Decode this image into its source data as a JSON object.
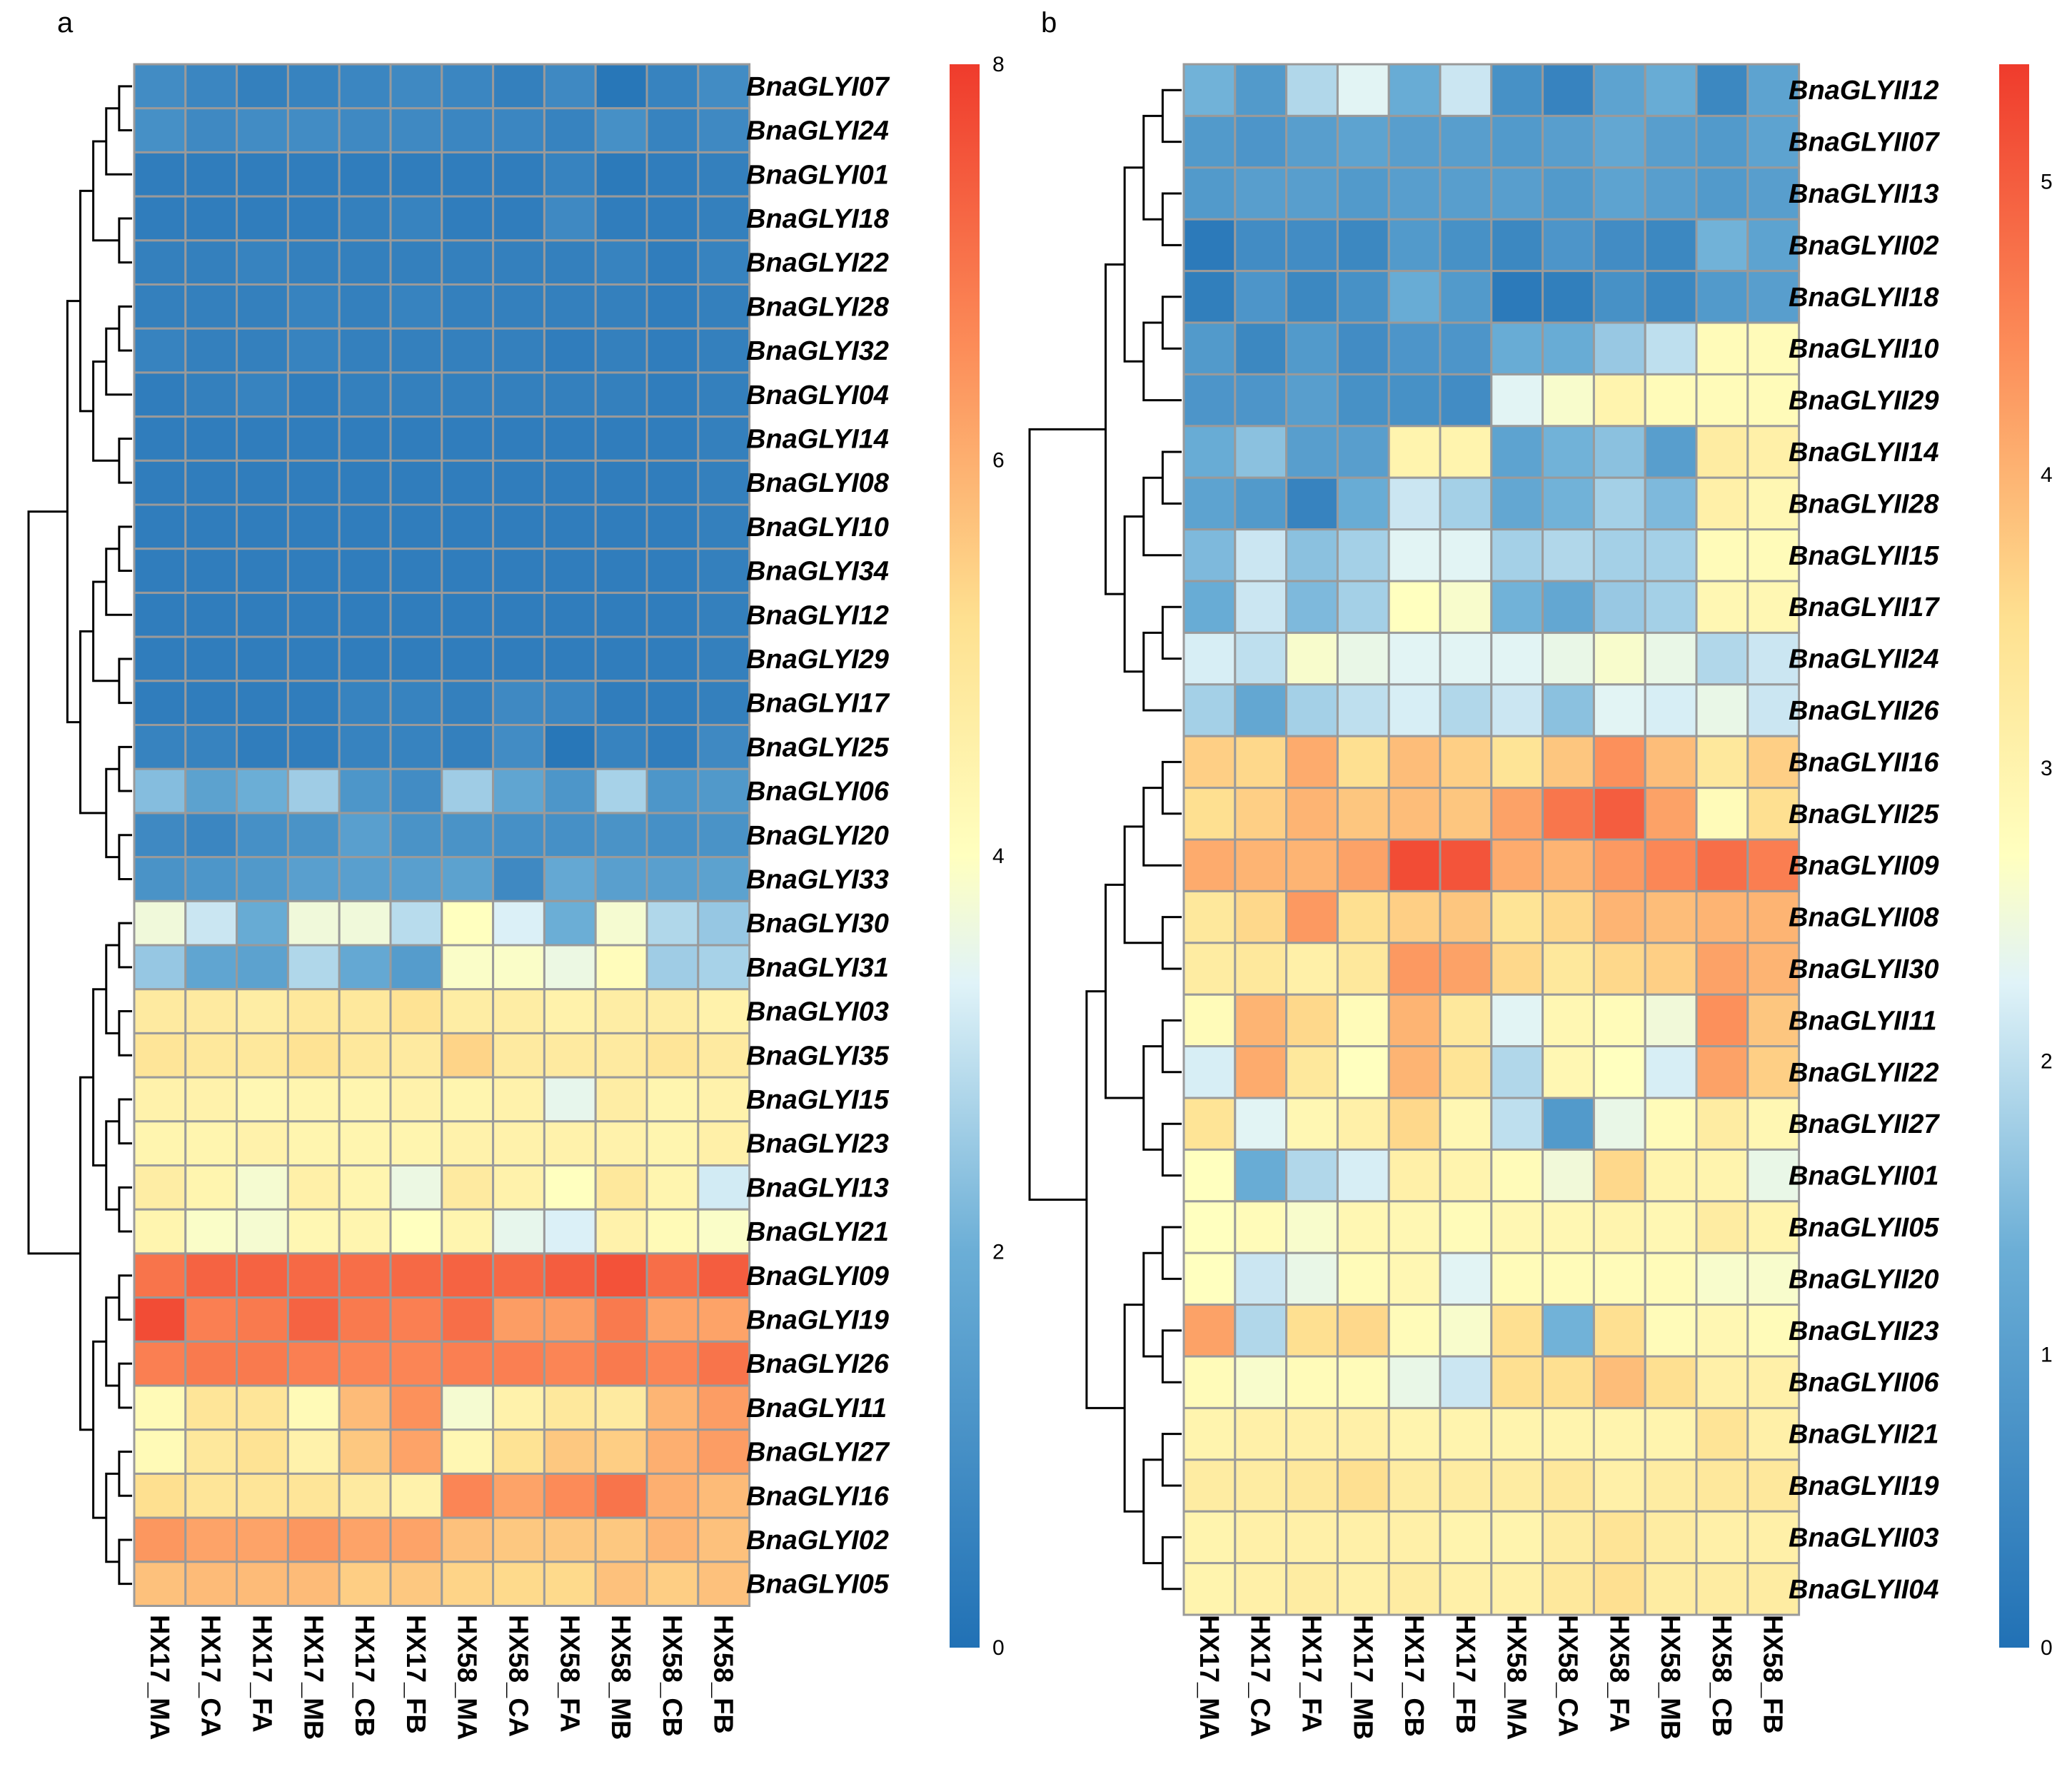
{
  "figure": {
    "panel_a_label": "a",
    "panel_b_label": "b"
  },
  "colors": {
    "low": "#2171b5",
    "mid": "#ffffbf",
    "high": "#ef3b2c",
    "grid": "#9a9a9a"
  },
  "chart_data": [
    {
      "type": "heatmap",
      "panel": "a",
      "columns": [
        "HX17_MA",
        "HX17_CA",
        "HX17_FA",
        "HX17_MB",
        "HX17_CB",
        "HX17_FB",
        "HX58_MA",
        "HX58_CA",
        "HX58_FA",
        "HX58_MB",
        "HX58_CB",
        "HX58_FB"
      ],
      "rows": [
        "BnaGLYI07",
        "BnaGLYI24",
        "BnaGLYI01",
        "BnaGLYI18",
        "BnaGLYI22",
        "BnaGLYI28",
        "BnaGLYI32",
        "BnaGLYI04",
        "BnaGLYI14",
        "BnaGLYI08",
        "BnaGLYI10",
        "BnaGLYI34",
        "BnaGLYI12",
        "BnaGLYI29",
        "BnaGLYI17",
        "BnaGLYI25",
        "BnaGLYI06",
        "BnaGLYI20",
        "BnaGLYI33",
        "BnaGLYI30",
        "BnaGLYI31",
        "BnaGLYI03",
        "BnaGLYI35",
        "BnaGLYI15",
        "BnaGLYI23",
        "BnaGLYI13",
        "BnaGLYI21",
        "BnaGLYI09",
        "BnaGLYI19",
        "BnaGLYI26",
        "BnaGLYI11",
        "BnaGLYI27",
        "BnaGLYI16",
        "BnaGLYI02",
        "BnaGLYI05"
      ],
      "values": [
        [
          0.9,
          0.7,
          0.5,
          0.6,
          0.7,
          0.8,
          0.7,
          0.5,
          0.8,
          0.2,
          0.6,
          0.9
        ],
        [
          1.0,
          0.8,
          0.9,
          0.9,
          0.8,
          0.8,
          0.7,
          0.7,
          0.6,
          1.0,
          0.6,
          0.8
        ],
        [
          0.4,
          0.4,
          0.4,
          0.4,
          0.4,
          0.4,
          0.4,
          0.4,
          0.6,
          0.3,
          0.4,
          0.5
        ],
        [
          0.4,
          0.4,
          0.4,
          0.4,
          0.5,
          0.6,
          0.4,
          0.4,
          0.8,
          0.4,
          0.4,
          0.5
        ],
        [
          0.5,
          0.5,
          0.6,
          0.5,
          0.5,
          0.5,
          0.5,
          0.5,
          0.5,
          0.6,
          0.4,
          0.6
        ],
        [
          0.5,
          0.5,
          0.5,
          0.6,
          0.5,
          0.6,
          0.5,
          0.5,
          0.5,
          0.5,
          0.4,
          0.5
        ],
        [
          0.6,
          0.5,
          0.5,
          0.6,
          0.5,
          0.5,
          0.5,
          0.5,
          0.4,
          0.5,
          0.4,
          0.5
        ],
        [
          0.4,
          0.5,
          0.6,
          0.4,
          0.5,
          0.5,
          0.5,
          0.5,
          0.5,
          0.5,
          0.4,
          0.5
        ],
        [
          0.4,
          0.4,
          0.4,
          0.4,
          0.4,
          0.4,
          0.4,
          0.4,
          0.4,
          0.4,
          0.4,
          0.5
        ],
        [
          0.4,
          0.4,
          0.4,
          0.4,
          0.4,
          0.4,
          0.4,
          0.4,
          0.4,
          0.4,
          0.4,
          0.5
        ],
        [
          0.4,
          0.4,
          0.4,
          0.4,
          0.4,
          0.4,
          0.4,
          0.4,
          0.4,
          0.4,
          0.4,
          0.5
        ],
        [
          0.4,
          0.4,
          0.4,
          0.4,
          0.4,
          0.4,
          0.4,
          0.4,
          0.4,
          0.4,
          0.4,
          0.5
        ],
        [
          0.4,
          0.4,
          0.4,
          0.4,
          0.4,
          0.4,
          0.4,
          0.4,
          0.4,
          0.4,
          0.4,
          0.5
        ],
        [
          0.4,
          0.4,
          0.4,
          0.4,
          0.4,
          0.4,
          0.4,
          0.4,
          0.4,
          0.4,
          0.4,
          0.5
        ],
        [
          0.4,
          0.4,
          0.4,
          0.4,
          0.6,
          0.6,
          0.5,
          0.8,
          0.7,
          0.4,
          0.4,
          0.5
        ],
        [
          0.6,
          0.6,
          0.4,
          0.4,
          0.6,
          0.6,
          0.5,
          0.9,
          0.2,
          0.6,
          0.4,
          0.8
        ],
        [
          2.3,
          1.6,
          2.0,
          2.6,
          1.2,
          0.9,
          2.6,
          1.7,
          1.2,
          2.7,
          1.2,
          1.3
        ],
        [
          0.8,
          0.7,
          1.0,
          1.1,
          1.5,
          1.1,
          1.1,
          1.0,
          1.0,
          1.1,
          1.0,
          1.1
        ],
        [
          1.1,
          1.2,
          1.3,
          1.5,
          1.5,
          1.5,
          1.6,
          0.8,
          1.8,
          1.5,
          1.5,
          1.6
        ],
        [
          3.7,
          3.1,
          1.9,
          3.7,
          3.7,
          2.9,
          4.0,
          3.3,
          2.0,
          3.8,
          2.8,
          2.5
        ],
        [
          2.5,
          1.7,
          1.6,
          2.8,
          1.8,
          1.4,
          3.9,
          3.9,
          3.6,
          4.1,
          2.6,
          2.7
        ],
        [
          4.8,
          4.8,
          4.7,
          4.9,
          4.9,
          5.1,
          4.7,
          4.7,
          4.5,
          4.7,
          4.7,
          4.5
        ],
        [
          5.0,
          4.9,
          4.9,
          5.1,
          4.9,
          4.8,
          5.4,
          4.8,
          4.8,
          4.8,
          5.0,
          4.8
        ],
        [
          4.5,
          4.5,
          4.3,
          4.4,
          4.4,
          4.5,
          4.4,
          4.5,
          3.5,
          4.7,
          4.4,
          4.5
        ],
        [
          4.4,
          4.4,
          4.5,
          4.4,
          4.4,
          4.4,
          4.5,
          4.5,
          4.5,
          4.5,
          4.4,
          4.6
        ],
        [
          4.7,
          4.4,
          3.8,
          4.6,
          4.4,
          3.6,
          4.8,
          4.5,
          4.0,
          4.9,
          4.4,
          3.2
        ],
        [
          4.4,
          3.9,
          3.8,
          4.3,
          4.4,
          4.0,
          4.4,
          3.5,
          3.3,
          4.5,
          4.2,
          3.9
        ],
        [
          7.0,
          7.3,
          7.3,
          7.2,
          7.1,
          7.2,
          7.3,
          7.2,
          7.4,
          7.6,
          7.1,
          7.4
        ],
        [
          7.7,
          6.8,
          6.9,
          7.3,
          6.9,
          6.8,
          7.1,
          6.3,
          6.3,
          6.9,
          6.2,
          6.2
        ],
        [
          6.8,
          6.9,
          6.9,
          6.8,
          6.7,
          6.7,
          6.8,
          6.8,
          6.7,
          6.9,
          6.7,
          7.0
        ],
        [
          4.2,
          5.0,
          5.0,
          4.2,
          5.8,
          6.5,
          3.8,
          4.5,
          4.9,
          4.8,
          5.9,
          6.3
        ],
        [
          4.2,
          4.9,
          5.1,
          4.5,
          5.6,
          6.2,
          4.3,
          5.1,
          5.6,
          5.5,
          6.0,
          6.3
        ],
        [
          5.2,
          5.0,
          5.0,
          5.0,
          4.8,
          4.5,
          6.7,
          6.2,
          6.6,
          7.0,
          6.0,
          5.8
        ],
        [
          6.4,
          6.2,
          6.2,
          6.4,
          6.2,
          6.2,
          5.7,
          5.6,
          5.6,
          5.6,
          5.9,
          5.7
        ],
        [
          5.7,
          5.8,
          5.8,
          5.8,
          5.5,
          5.6,
          5.4,
          5.3,
          5.3,
          5.7,
          5.5,
          5.7
        ]
      ],
      "scale": {
        "min": 0,
        "max": 8,
        "ticks": [
          0,
          2,
          4,
          6,
          8
        ]
      },
      "row_clusters": [
        [
          "BnaGLYI07",
          "BnaGLYI24",
          "BnaGLYI01",
          "BnaGLYI18",
          "BnaGLYI22",
          "BnaGLYI28",
          "BnaGLYI32",
          "BnaGLYI04",
          "BnaGLYI14",
          "BnaGLYI08",
          "BnaGLYI10",
          "BnaGLYI34",
          "BnaGLYI12",
          "BnaGLYI29",
          "BnaGLYI17",
          "BnaGLYI25",
          "BnaGLYI06",
          "BnaGLYI20",
          "BnaGLYI33"
        ],
        [
          "BnaGLYI30",
          "BnaGLYI31",
          "BnaGLYI03",
          "BnaGLYI35",
          "BnaGLYI15",
          "BnaGLYI23",
          "BnaGLYI13",
          "BnaGLYI21",
          "BnaGLYI09",
          "BnaGLYI19",
          "BnaGLYI26",
          "BnaGLYI11",
          "BnaGLYI27",
          "BnaGLYI16",
          "BnaGLYI02",
          "BnaGLYI05"
        ]
      ]
    },
    {
      "type": "heatmap",
      "panel": "b",
      "columns": [
        "HX17_MA",
        "HX17_CA",
        "HX17_FA",
        "HX17_MB",
        "HX17_CB",
        "HX17_FB",
        "HX58_MA",
        "HX58_CA",
        "HX58_FA",
        "HX58_MB",
        "HX58_CB",
        "HX58_FB"
      ],
      "rows": [
        "BnaGLYII12",
        "BnaGLYII07",
        "BnaGLYII13",
        "BnaGLYII02",
        "BnaGLYII18",
        "BnaGLYII10",
        "BnaGLYII29",
        "BnaGLYII14",
        "BnaGLYII28",
        "BnaGLYII15",
        "BnaGLYII17",
        "BnaGLYII24",
        "BnaGLYII26",
        "BnaGLYII16",
        "BnaGLYII25",
        "BnaGLYII09",
        "BnaGLYII08",
        "BnaGLYII30",
        "BnaGLYII11",
        "BnaGLYII22",
        "BnaGLYII27",
        "BnaGLYII01",
        "BnaGLYII05",
        "BnaGLYII20",
        "BnaGLYII23",
        "BnaGLYII06",
        "BnaGLYII21",
        "BnaGLYII19",
        "BnaGLYII03",
        "BnaGLYII04"
      ],
      "values": [
        [
          1.4,
          0.9,
          1.9,
          2.3,
          1.3,
          2.1,
          0.7,
          0.4,
          1.1,
          1.3,
          0.5,
          1.1
        ],
        [
          0.9,
          0.8,
          1.0,
          1.1,
          1.0,
          1.0,
          0.9,
          1.0,
          1.2,
          1.0,
          0.9,
          1.1
        ],
        [
          0.9,
          1.0,
          1.0,
          0.9,
          1.0,
          1.0,
          1.0,
          0.9,
          1.1,
          1.0,
          0.9,
          1.0
        ],
        [
          0.2,
          0.6,
          0.6,
          0.5,
          0.9,
          0.7,
          0.5,
          0.8,
          0.6,
          0.5,
          1.4,
          1.1
        ],
        [
          0.3,
          0.8,
          0.5,
          0.7,
          1.3,
          0.9,
          0.2,
          0.3,
          0.7,
          0.5,
          0.9,
          1.0
        ],
        [
          0.9,
          0.5,
          0.9,
          0.6,
          0.8,
          0.8,
          1.3,
          1.3,
          1.7,
          2.0,
          2.8,
          2.8
        ],
        [
          0.8,
          0.8,
          1.0,
          0.7,
          0.7,
          0.6,
          2.3,
          2.6,
          3.0,
          2.8,
          2.8,
          2.8
        ],
        [
          1.3,
          1.6,
          1.0,
          1.0,
          3.0,
          3.0,
          1.1,
          1.4,
          1.6,
          1.0,
          3.2,
          3.1
        ],
        [
          1.1,
          0.9,
          0.4,
          1.3,
          2.1,
          1.8,
          1.2,
          1.4,
          1.8,
          1.5,
          3.1,
          2.9
        ],
        [
          1.5,
          2.1,
          1.6,
          1.8,
          2.3,
          2.3,
          1.8,
          1.9,
          1.8,
          1.8,
          2.8,
          2.8
        ],
        [
          1.3,
          2.1,
          1.5,
          1.8,
          2.7,
          2.6,
          1.4,
          1.2,
          1.7,
          1.8,
          2.9,
          2.9
        ],
        [
          2.2,
          2.0,
          2.6,
          2.4,
          2.3,
          2.3,
          2.3,
          2.4,
          2.6,
          2.4,
          1.9,
          2.1
        ],
        [
          1.8,
          1.2,
          1.8,
          2.0,
          2.2,
          1.9,
          2.1,
          1.6,
          2.3,
          2.2,
          2.4,
          2.1
        ],
        [
          3.7,
          3.6,
          4.1,
          3.5,
          3.9,
          3.7,
          3.4,
          3.8,
          4.4,
          3.9,
          3.3,
          3.7
        ],
        [
          3.5,
          3.7,
          4.0,
          3.8,
          3.9,
          3.8,
          4.2,
          4.7,
          5.0,
          4.2,
          2.8,
          3.5
        ],
        [
          4.1,
          4.0,
          4.0,
          4.2,
          5.2,
          5.1,
          4.1,
          4.0,
          4.3,
          4.5,
          4.8,
          4.6
        ],
        [
          3.3,
          3.6,
          4.3,
          3.5,
          3.7,
          3.8,
          3.4,
          3.6,
          4.0,
          3.9,
          4.0,
          4.0
        ],
        [
          3.2,
          3.3,
          3.1,
          3.3,
          4.3,
          4.2,
          3.6,
          3.3,
          3.6,
          3.7,
          4.2,
          4.0
        ],
        [
          2.8,
          4.0,
          3.6,
          2.8,
          4.0,
          3.3,
          2.3,
          2.9,
          2.8,
          2.5,
          4.4,
          3.8
        ],
        [
          2.2,
          4.1,
          3.3,
          2.7,
          4.0,
          3.4,
          1.9,
          2.9,
          2.7,
          2.2,
          4.2,
          3.7
        ],
        [
          3.4,
          2.3,
          2.9,
          3.1,
          3.6,
          2.9,
          2.0,
          0.9,
          2.4,
          2.8,
          3.2,
          2.9
        ],
        [
          2.7,
          1.3,
          1.9,
          2.2,
          3.1,
          3.0,
          2.8,
          2.5,
          3.6,
          3.0,
          3.0,
          2.4
        ],
        [
          2.7,
          2.8,
          2.6,
          2.9,
          2.9,
          2.8,
          2.9,
          2.9,
          3.0,
          2.9,
          3.2,
          3.0
        ],
        [
          2.7,
          2.1,
          2.4,
          2.8,
          2.9,
          2.3,
          2.8,
          2.8,
          2.8,
          2.8,
          2.6,
          2.6
        ],
        [
          4.2,
          1.9,
          3.5,
          3.6,
          2.8,
          2.6,
          3.5,
          1.4,
          3.5,
          2.8,
          2.9,
          2.8
        ],
        [
          2.8,
          2.6,
          2.8,
          2.8,
          2.4,
          2.1,
          3.5,
          3.5,
          3.9,
          3.5,
          3.1,
          3.1
        ],
        [
          3.0,
          3.1,
          3.1,
          3.1,
          3.0,
          3.0,
          3.0,
          3.0,
          3.0,
          3.0,
          3.4,
          3.1
        ],
        [
          3.2,
          3.2,
          3.3,
          3.5,
          3.2,
          3.2,
          3.2,
          3.3,
          3.1,
          3.2,
          3.3,
          3.3
        ],
        [
          3.0,
          3.1,
          3.1,
          3.1,
          3.1,
          3.0,
          3.0,
          3.2,
          3.4,
          3.2,
          3.1,
          3.1
        ],
        [
          3.0,
          3.1,
          3.2,
          3.1,
          3.2,
          3.1,
          3.1,
          3.3,
          3.5,
          3.2,
          3.2,
          3.2
        ]
      ],
      "scale": {
        "min": 0,
        "max": 5.4,
        "ticks": [
          0,
          1,
          2,
          3,
          4,
          5
        ]
      },
      "row_clusters": [
        [
          "BnaGLYII12",
          "BnaGLYII07",
          "BnaGLYII13",
          "BnaGLYII02",
          "BnaGLYII18",
          "BnaGLYII10",
          "BnaGLYII29",
          "BnaGLYII14",
          "BnaGLYII28",
          "BnaGLYII15",
          "BnaGLYII17",
          "BnaGLYII24",
          "BnaGLYII26"
        ],
        [
          "BnaGLYII16",
          "BnaGLYII25",
          "BnaGLYII09",
          "BnaGLYII08",
          "BnaGLYII30",
          "BnaGLYII11",
          "BnaGLYII22",
          "BnaGLYII27",
          "BnaGLYII01",
          "BnaGLYII05",
          "BnaGLYII20",
          "BnaGLYII23",
          "BnaGLYII06",
          "BnaGLYII21",
          "BnaGLYII19",
          "BnaGLYII03",
          "BnaGLYII04"
        ]
      ]
    }
  ]
}
